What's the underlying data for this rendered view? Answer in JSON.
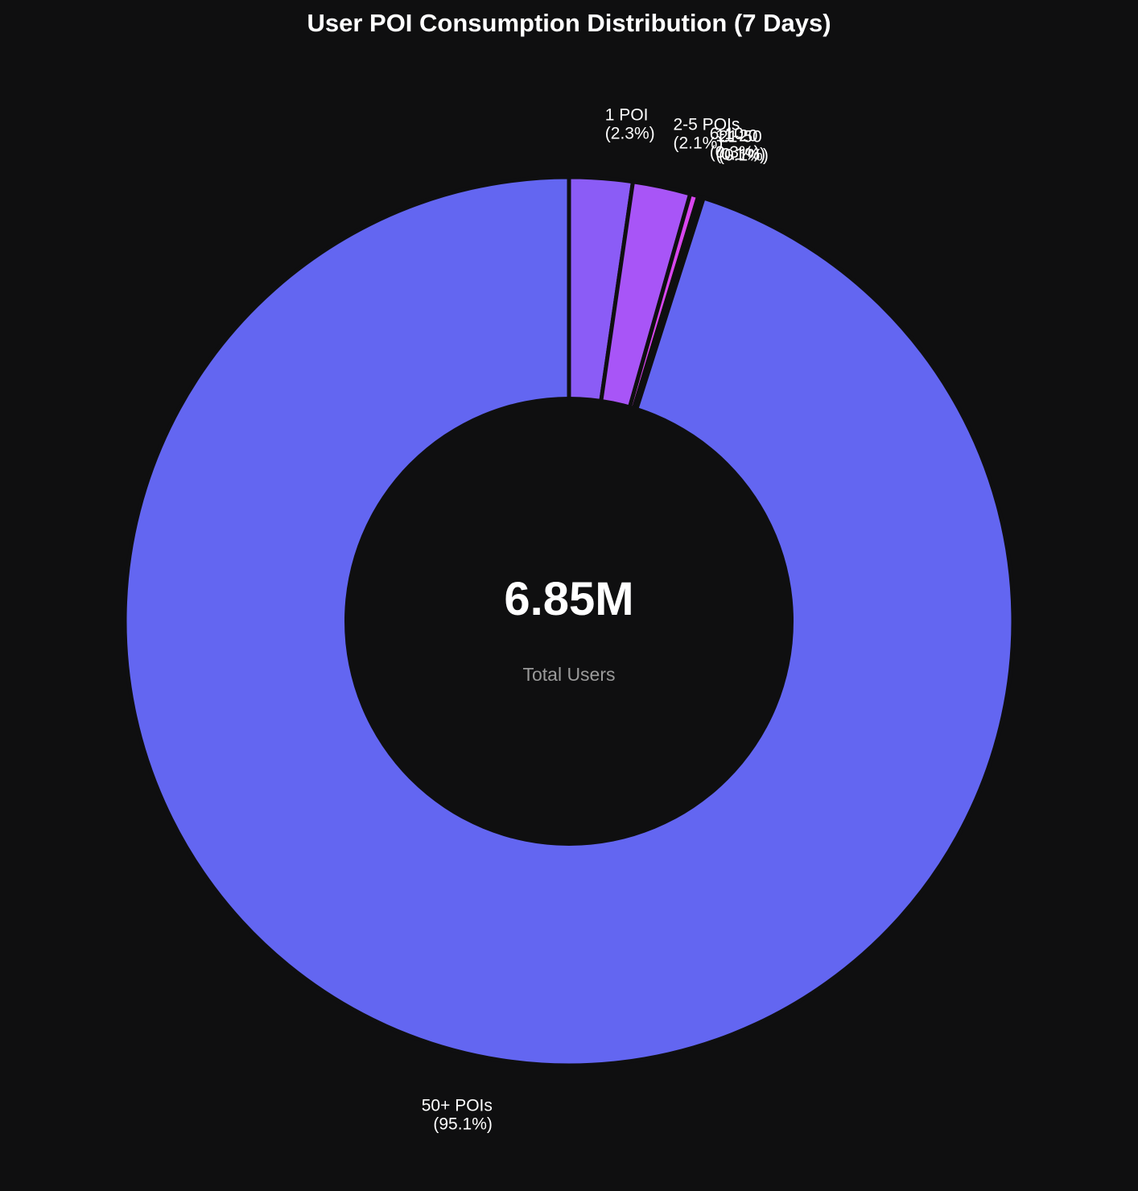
{
  "chart_data": {
    "type": "pie",
    "variant": "donut",
    "title": "User POI Consumption Distribution (7 Days)",
    "center_value": "6.85M",
    "center_caption": "Total Users",
    "start_angle_deg": 90,
    "direction": "clockwise",
    "slices": [
      {
        "name": "1 POI",
        "label": "1 POI",
        "pct_label": "(2.3%)",
        "value": 2.3,
        "color": "#8b5cf6"
      },
      {
        "name": "2-5 POIs",
        "label": "2-5 POIs",
        "pct_label": "(2.1%)",
        "value": 2.1,
        "color": "#a855f7"
      },
      {
        "name": "6-10",
        "label": "6-10",
        "pct_label": "(0.3%)",
        "value": 0.3,
        "color": "#d946ef"
      },
      {
        "name": "11-20",
        "label": "11-20",
        "pct_label": "(0.1%)",
        "value": 0.1,
        "color": "#ec4899"
      },
      {
        "name": "21-50",
        "label": "21-50",
        "pct_label": "(0.1%)",
        "value": 0.1,
        "color": "#f43f5e"
      },
      {
        "name": "50+ POIs",
        "label": "50+ POIs",
        "pct_label": "(95.1%)",
        "value": 95.1,
        "color": "#6366f1"
      }
    ]
  },
  "colors": {
    "background": "#0f0f10",
    "separator": "#0f0f10"
  }
}
